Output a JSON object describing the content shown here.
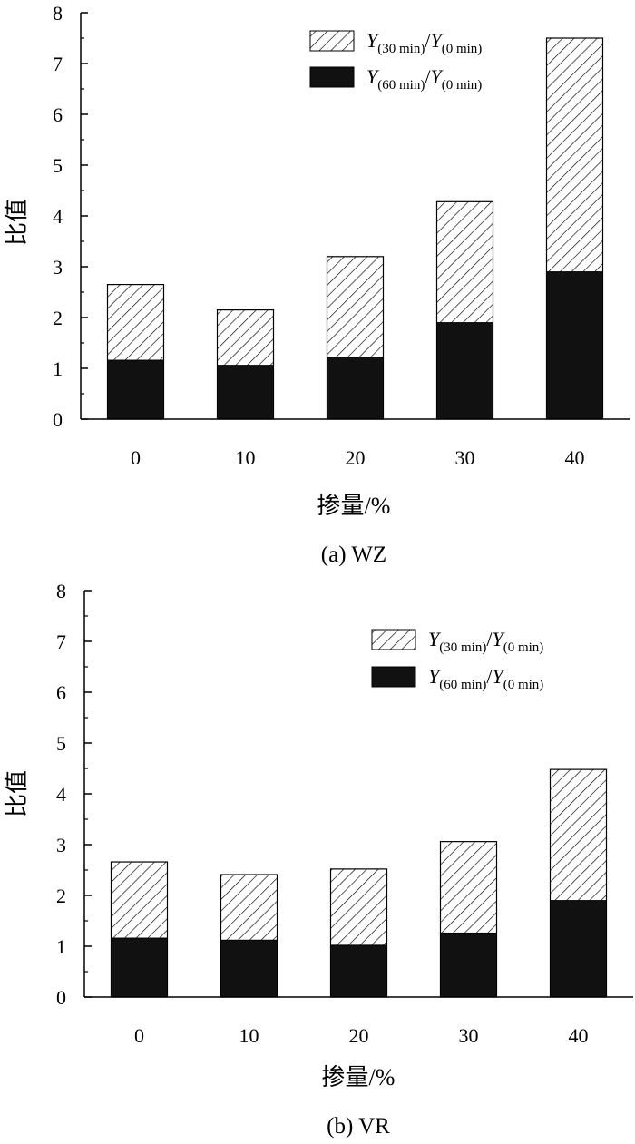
{
  "chart_data": [
    {
      "type": "bar",
      "stacked": "overlay",
      "caption": "(a) WZ",
      "xlabel": "掺量/%",
      "ylabel": "比值",
      "categories": [
        "0",
        "10",
        "20",
        "30",
        "40"
      ],
      "ylim": [
        0,
        8
      ],
      "yticks": [
        0,
        1,
        2,
        3,
        4,
        5,
        6,
        7,
        8
      ],
      "legend_position": "top-right",
      "series": [
        {
          "name": "Y(30 min)/Y(0 min)",
          "pattern": "hatch",
          "values": [
            2.65,
            2.15,
            3.2,
            4.28,
            7.5
          ]
        },
        {
          "name": "Y(60 min)/Y(0 min)",
          "pattern": "solid",
          "values": [
            1.16,
            1.06,
            1.22,
            1.9,
            2.9
          ]
        }
      ]
    },
    {
      "type": "bar",
      "stacked": "overlay",
      "caption": "(b) VR",
      "xlabel": "掺量/%",
      "ylabel": "比值",
      "categories": [
        "0",
        "10",
        "20",
        "30",
        "40"
      ],
      "ylim": [
        0,
        8
      ],
      "yticks": [
        0,
        1,
        2,
        3,
        4,
        5,
        6,
        7,
        8
      ],
      "legend_position": "top-right",
      "series": [
        {
          "name": "Y(30 min)/Y(0 min)",
          "pattern": "hatch",
          "values": [
            2.66,
            2.41,
            2.52,
            3.06,
            4.48
          ]
        },
        {
          "name": "Y(60 min)/Y(0 min)",
          "pattern": "solid",
          "values": [
            1.16,
            1.12,
            1.02,
            1.26,
            1.9
          ]
        }
      ]
    }
  ],
  "legend": {
    "s30": {
      "Y": "Y",
      "sub1": "(30 min)",
      "slash": "/",
      "sub2": "(0 min)"
    },
    "s60": {
      "Y": "Y",
      "sub1": "(60 min)",
      "slash": "/",
      "sub2": "(0 min)"
    }
  }
}
